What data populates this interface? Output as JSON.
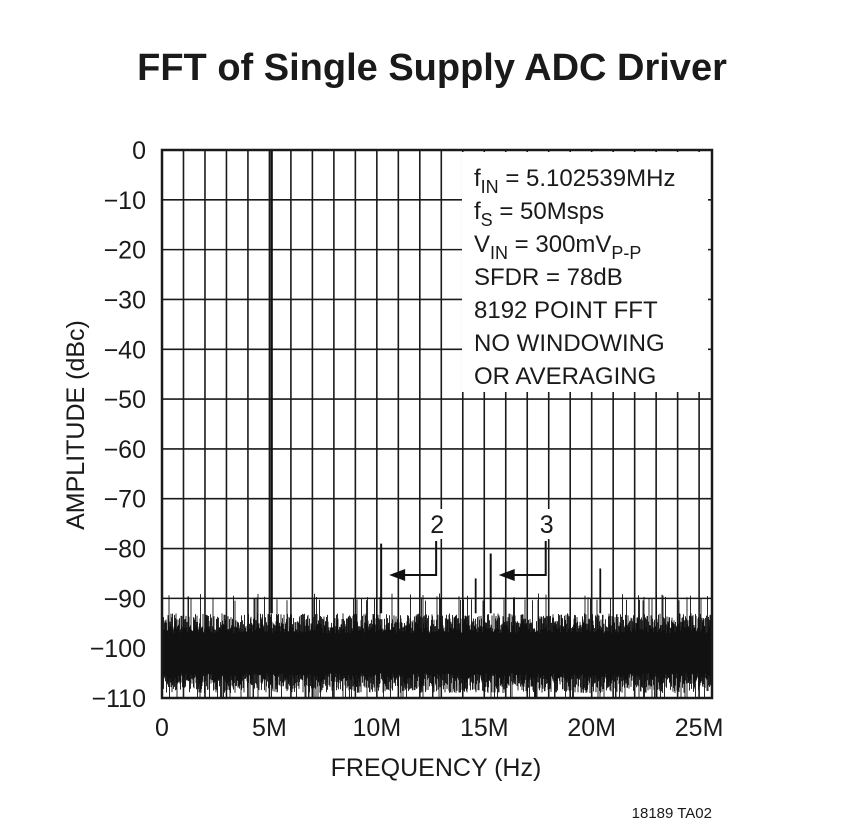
{
  "chart_data": {
    "type": "line",
    "title": "FFT of Single Supply ADC Driver",
    "xlabel": "FREQUENCY (Hz)",
    "ylabel": "AMPLITUDE (dBc)",
    "xlim": [
      0,
      25600000
    ],
    "ylim": [
      -110,
      0
    ],
    "grid": true,
    "x_ticks": [
      {
        "value": 0,
        "label": "0"
      },
      {
        "value": 5000000,
        "label": "5M"
      },
      {
        "value": 10000000,
        "label": "10M"
      },
      {
        "value": 15000000,
        "label": "15M"
      },
      {
        "value": 20000000,
        "label": "20M"
      },
      {
        "value": 25000000,
        "label": "25M"
      }
    ],
    "y_ticks": [
      {
        "value": 0,
        "label": "0"
      },
      {
        "value": -10,
        "label": "−10"
      },
      {
        "value": -20,
        "label": "−20"
      },
      {
        "value": -30,
        "label": "−30"
      },
      {
        "value": -40,
        "label": "−40"
      },
      {
        "value": -50,
        "label": "−50"
      },
      {
        "value": -60,
        "label": "−60"
      },
      {
        "value": -70,
        "label": "−70"
      },
      {
        "value": -80,
        "label": "−80"
      },
      {
        "value": -90,
        "label": "−90"
      },
      {
        "value": -100,
        "label": "−100"
      },
      {
        "value": -110,
        "label": "−110"
      }
    ],
    "fundamental": {
      "freq": 5100000,
      "amplitude": 0
    },
    "harmonics": [
      {
        "label": "2",
        "freq": 10200000,
        "amplitude": -79
      },
      {
        "label": "3",
        "freq": 15300000,
        "amplitude": -81
      }
    ],
    "spurs": [
      {
        "freq": 20400000,
        "amplitude": -84
      },
      {
        "freq": 14600000,
        "amplitude": -86
      }
    ],
    "noise_floor": {
      "min": -110,
      "typical_low": -105,
      "typical_high": -93,
      "max": -89
    },
    "annotation_lines": [
      {
        "main": "f",
        "sub": "IN",
        "rest": " = 5.102539MHz"
      },
      {
        "main": "f",
        "sub": "S",
        "rest": " = 50Msps"
      },
      {
        "main": "V",
        "sub": "IN",
        "rest": " = 300mV",
        "sub2": "P-P"
      },
      {
        "main": "SFDR = 78dB"
      },
      {
        "main": "8192 POINT FFT"
      },
      {
        "main": "NO WINDOWING"
      },
      {
        "main": "OR AVERAGING"
      }
    ],
    "figure_code": "18189 TA02"
  }
}
